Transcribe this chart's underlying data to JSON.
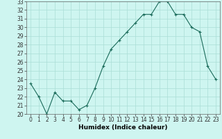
{
  "x": [
    0,
    1,
    2,
    3,
    4,
    5,
    6,
    7,
    8,
    9,
    10,
    11,
    12,
    13,
    14,
    15,
    16,
    17,
    18,
    19,
    20,
    21,
    22,
    23
  ],
  "y": [
    23.5,
    22.0,
    20.0,
    22.5,
    21.5,
    21.5,
    20.5,
    21.0,
    23.0,
    25.5,
    27.5,
    28.5,
    29.5,
    30.5,
    31.5,
    31.5,
    33.0,
    33.0,
    31.5,
    31.5,
    30.0,
    29.5,
    25.5,
    24.0
  ],
  "xlabel": "Humidex (Indice chaleur)",
  "ylabel": "",
  "ylim": [
    20,
    33
  ],
  "xlim": [
    -0.5,
    23.5
  ],
  "yticks": [
    20,
    21,
    22,
    23,
    24,
    25,
    26,
    27,
    28,
    29,
    30,
    31,
    32,
    33
  ],
  "xticks": [
    0,
    1,
    2,
    3,
    4,
    5,
    6,
    7,
    8,
    9,
    10,
    11,
    12,
    13,
    14,
    15,
    16,
    17,
    18,
    19,
    20,
    21,
    22,
    23
  ],
  "line_color": "#1a6b5a",
  "marker": "+",
  "marker_size": 3,
  "bg_color": "#cef5f0",
  "grid_color": "#aaddd6",
  "label_fontsize": 6.5,
  "tick_fontsize": 5.5
}
